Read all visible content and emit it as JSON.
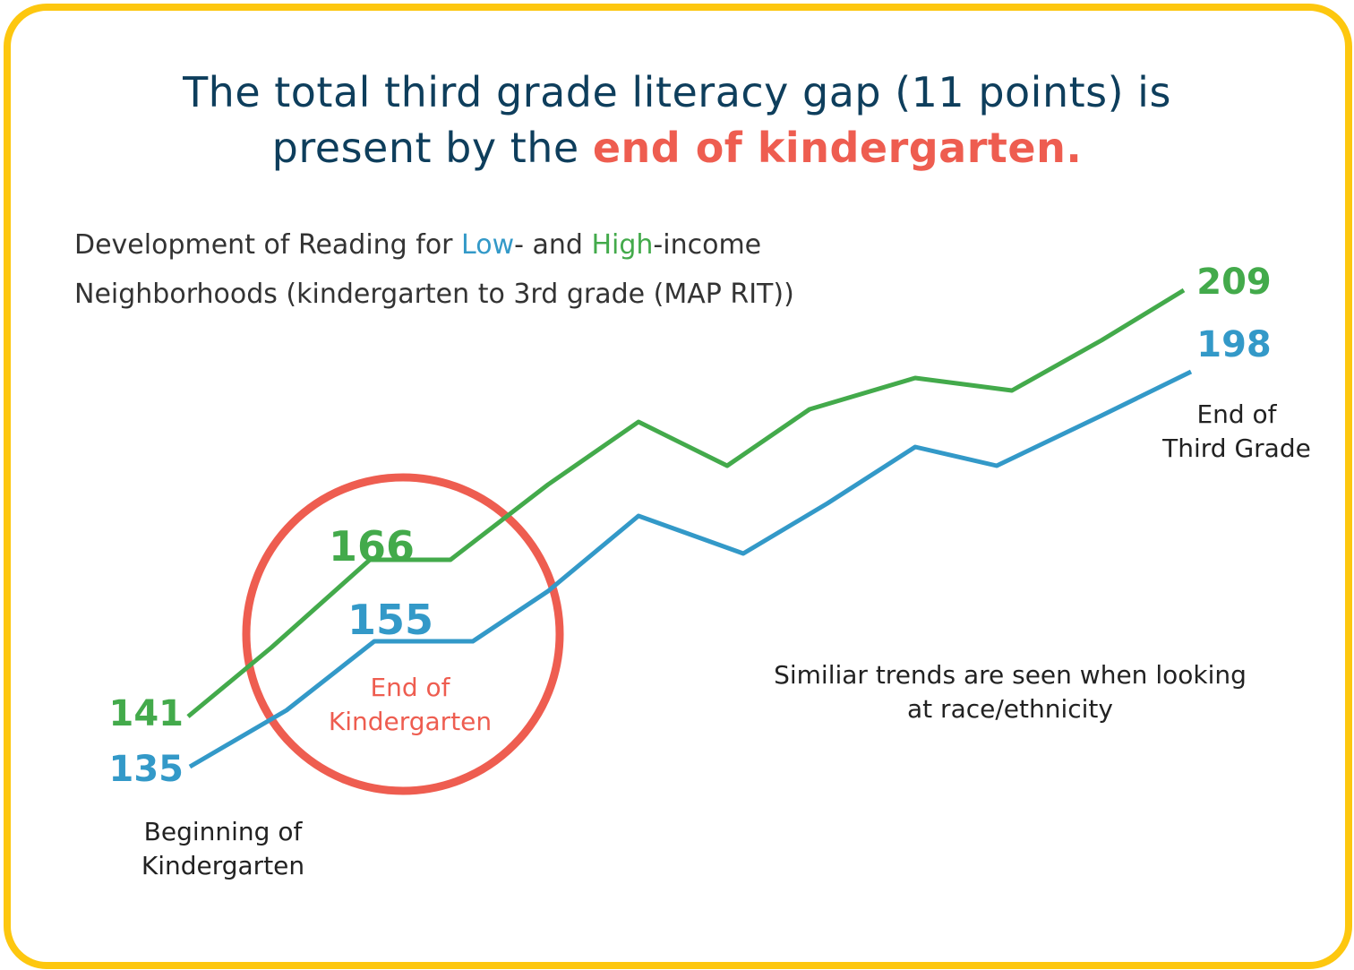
{
  "title": {
    "line1": "The total third grade literacy gap (11 points) is",
    "line2_prefix": "present by the ",
    "line2_emphasis": "end of kindergarten."
  },
  "subtitle": {
    "part1": "Development of Reading for ",
    "low": "Low",
    "part2": "- and ",
    "high": "High",
    "part3": "-income",
    "line2": "Neighborhoods (kindergarten to 3rd grade (MAP RIT))"
  },
  "annotations": {
    "beginning_line1": "Beginning of",
    "beginning_line2": "Kindergarten",
    "end_k_line1": "End of",
    "end_k_line2": "Kindergarten",
    "end_third_line1": "End of",
    "end_third_line2": "Third Grade",
    "note_line1": "Similiar trends are seen when looking",
    "note_line2": "at race/ethnicity"
  },
  "colors": {
    "high": "#43AA4B",
    "low": "#3399C8",
    "accent": "#EE5D50",
    "title": "#0E3E5C",
    "border": "#FDC70F"
  },
  "chart_data": {
    "type": "line",
    "x": [
      0,
      1,
      2,
      3,
      4,
      5,
      6,
      7,
      8,
      9,
      10,
      11
    ],
    "ylim": [
      130,
      215
    ],
    "series": [
      {
        "values": [
          141,
          152,
          166,
          166,
          178,
          188,
          181,
          190,
          195,
          193,
          201,
          209
        ],
        "labels": {
          "start": "141",
          "mid": "166",
          "end": "209"
        }
      },
      {
        "values": [
          135,
          144,
          155,
          155,
          163,
          175,
          169,
          177,
          186,
          183,
          191,
          198
        ],
        "labels": {
          "start": "135",
          "mid": "155",
          "end": "198"
        }
      }
    ],
    "grid": false
  }
}
